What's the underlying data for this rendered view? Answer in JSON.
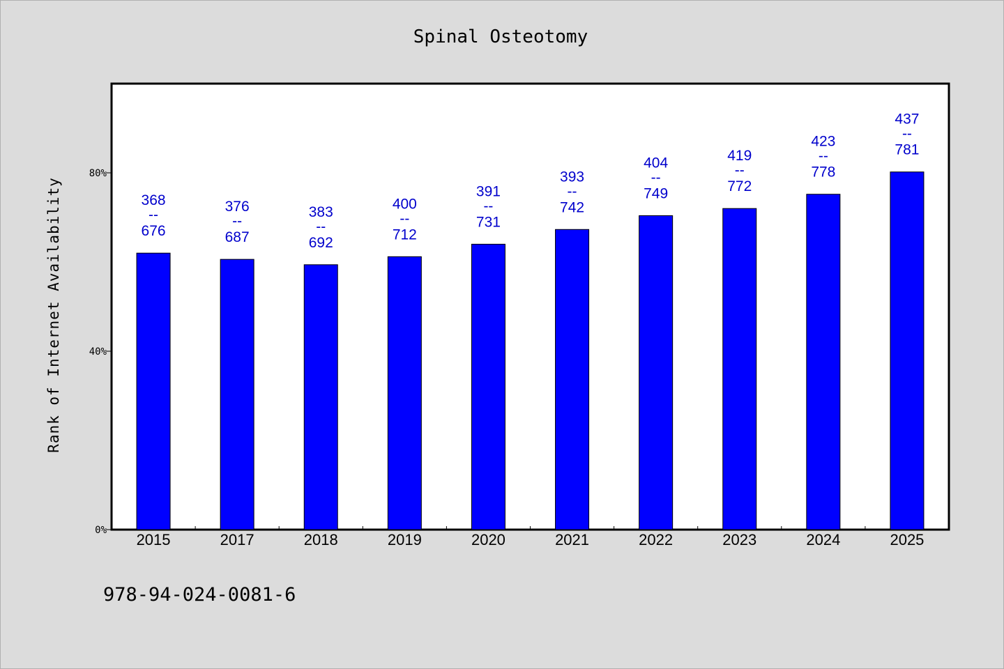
{
  "chart_data": {
    "type": "bar",
    "title": "Spinal Osteotomy",
    "ylabel": "Rank of Internet Availability",
    "xlabel": "",
    "categories": [
      "2015",
      "2017",
      "2018",
      "2019",
      "2020",
      "2021",
      "2022",
      "2023",
      "2024",
      "2025"
    ],
    "values": [
      62,
      60.6,
      59.4,
      61.2,
      64,
      67.3,
      70.4,
      72,
      75.2,
      80.2
    ],
    "value_unit": "%",
    "ylim": [
      0,
      100
    ],
    "yticks": [
      0,
      40,
      80
    ],
    "ytick_labels": [
      "0%",
      "40%",
      "80%"
    ],
    "data_labels": [
      {
        "low": "368",
        "sep": "--",
        "high": "676"
      },
      {
        "low": "376",
        "sep": "--",
        "high": "687"
      },
      {
        "low": "383",
        "sep": "--",
        "high": "692"
      },
      {
        "low": "400",
        "sep": "--",
        "high": "712"
      },
      {
        "low": "391",
        "sep": "--",
        "high": "731"
      },
      {
        "low": "393",
        "sep": "--",
        "high": "742"
      },
      {
        "low": "404",
        "sep": "--",
        "high": "749"
      },
      {
        "low": "419",
        "sep": "--",
        "high": "772"
      },
      {
        "low": "423",
        "sep": "--",
        "high": "778"
      },
      {
        "low": "437",
        "sep": "--",
        "high": "781"
      }
    ],
    "bar_color": "#0000ff",
    "label_color": "#0000cc",
    "grid": false,
    "legend": "none"
  },
  "footer": {
    "isbn": "978-94-024-0081-6"
  }
}
